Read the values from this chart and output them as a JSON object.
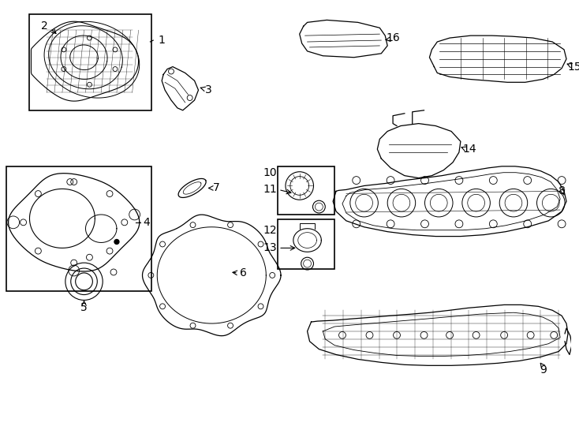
{
  "bg_color": "#ffffff",
  "line_color": "#000000",
  "fig_width": 7.34,
  "fig_height": 5.4,
  "dpi": 100,
  "label_fs": 10,
  "lw": 0.9
}
